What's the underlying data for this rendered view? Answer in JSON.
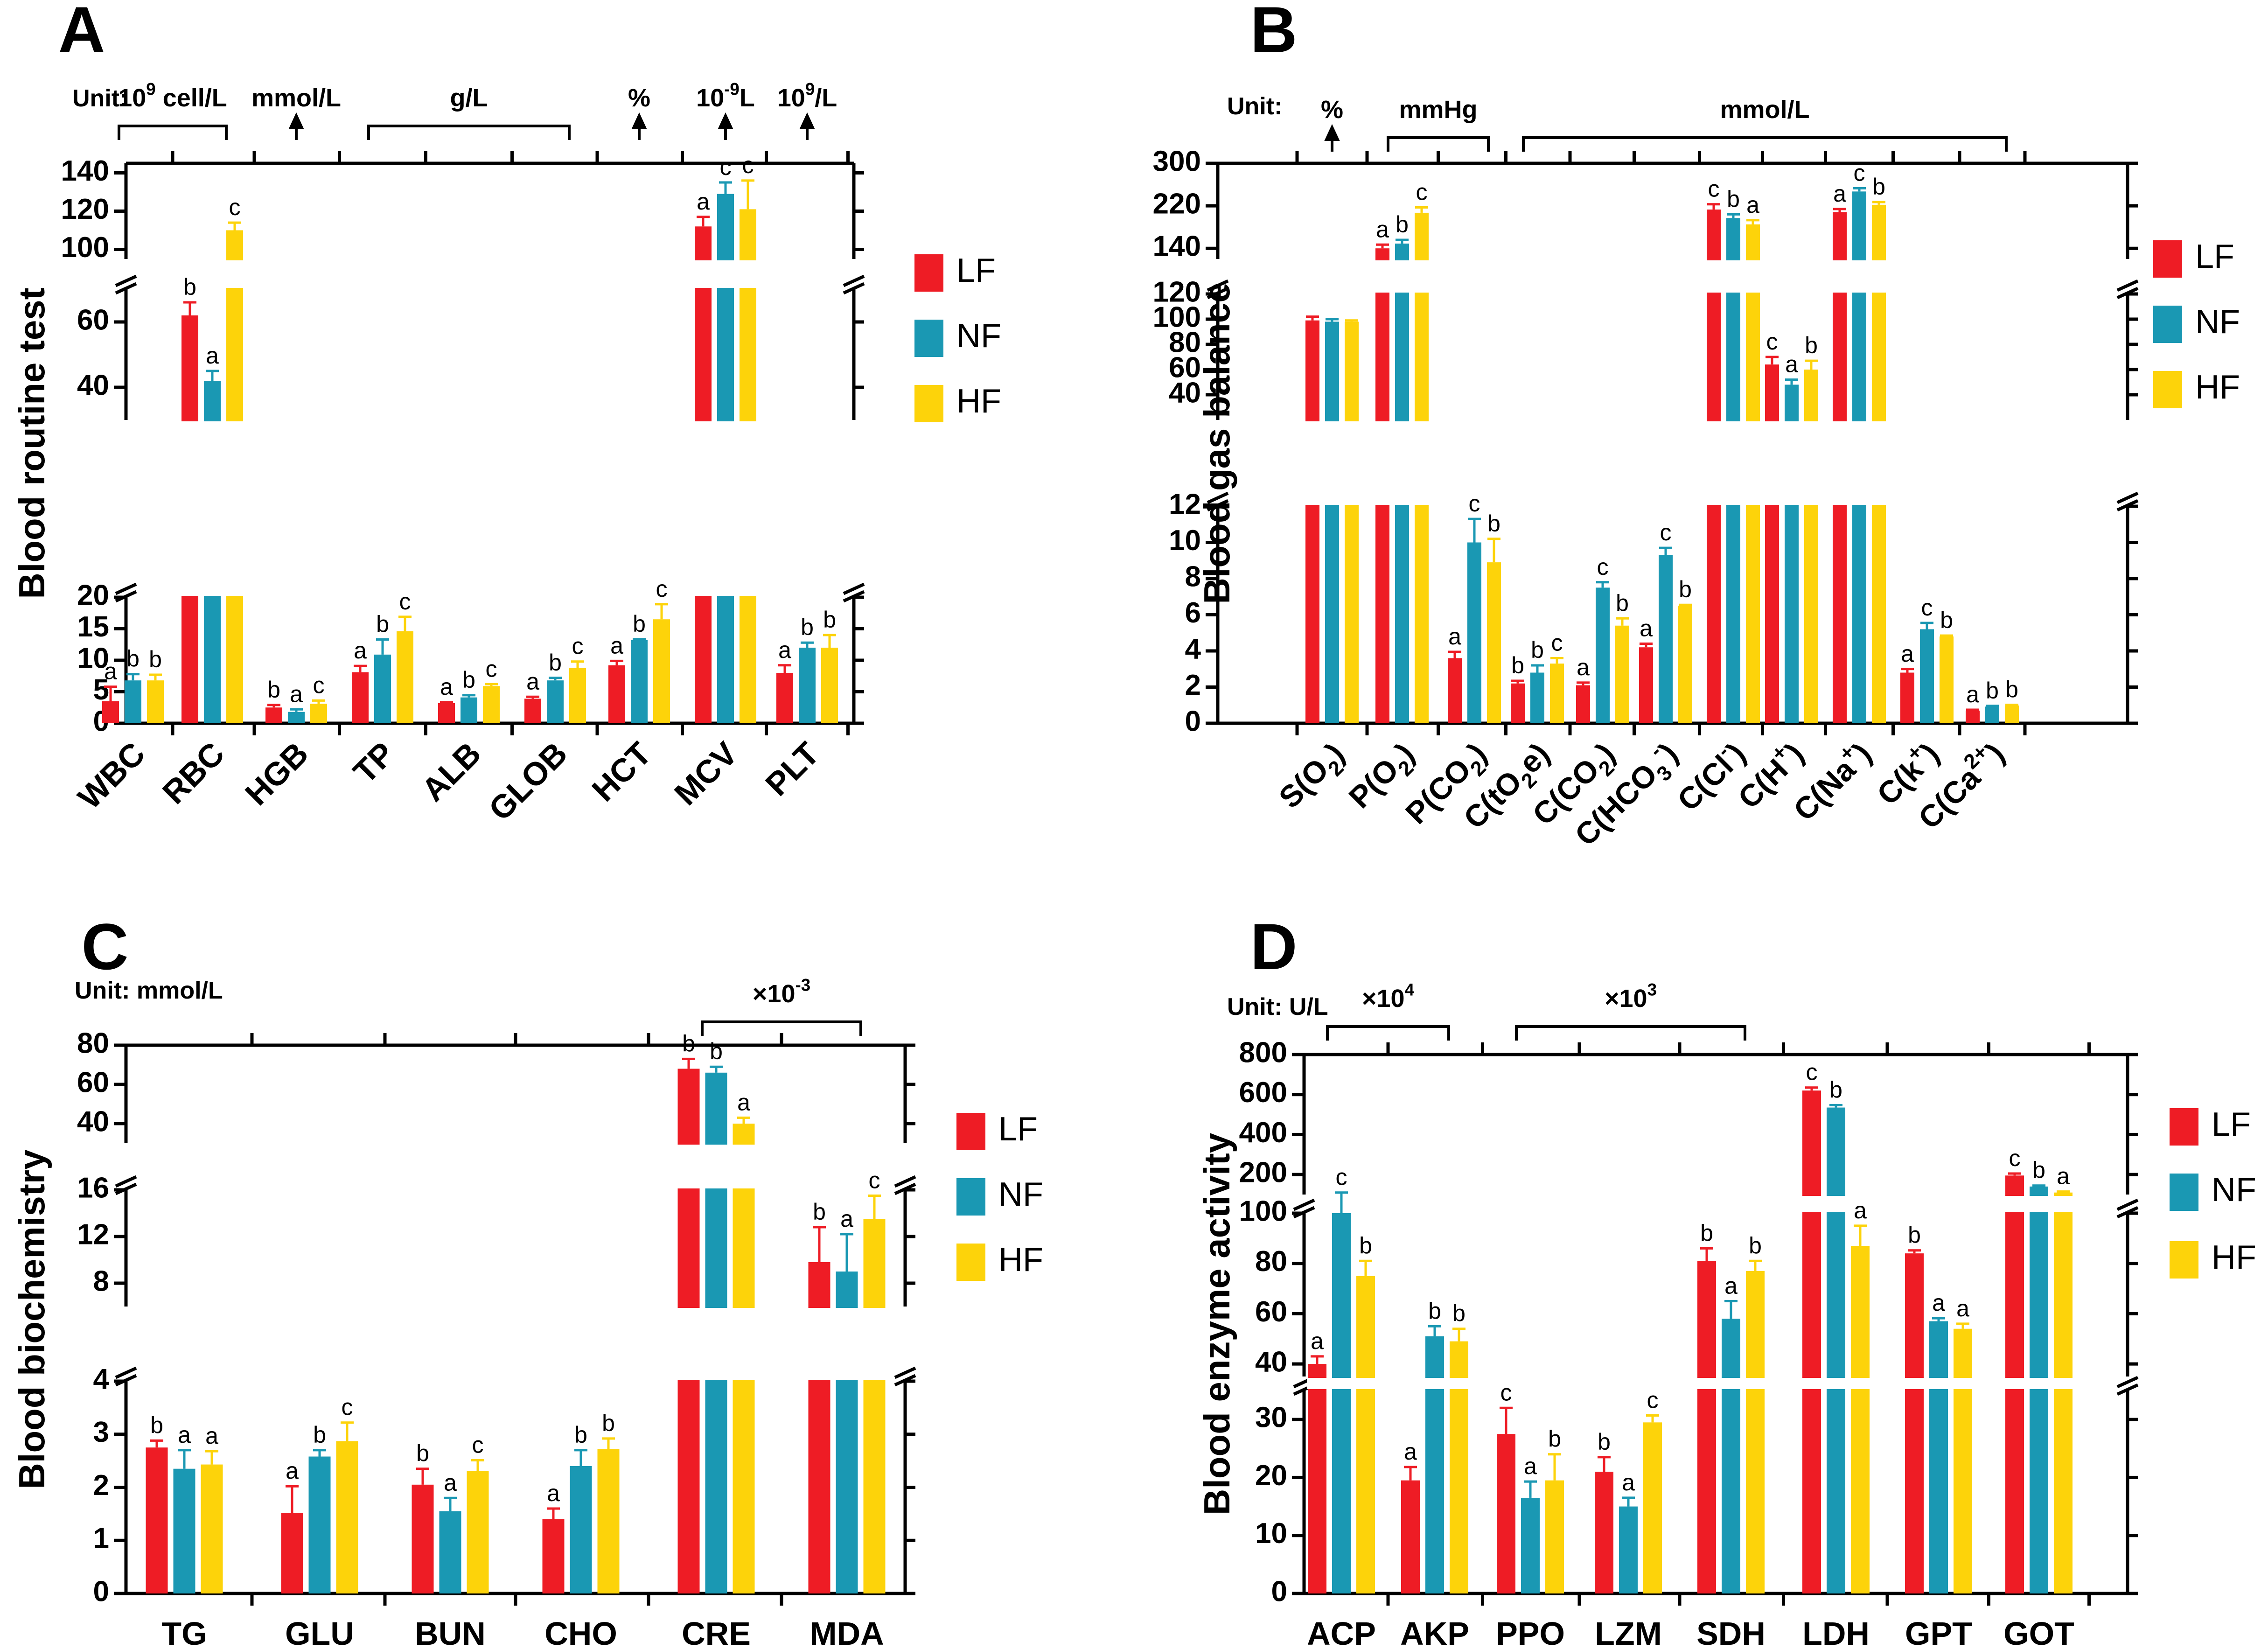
{
  "figure": {
    "legend": [
      "LF",
      "NF",
      "HF"
    ],
    "colors": {
      "LF": "#ee1c25",
      "NF": "#1a98b3",
      "HF": "#fdd30a"
    }
  },
  "chart_data": [
    {
      "panel": "A",
      "type": "bar",
      "ylabel": "Blood routine test",
      "unit_label": "Unit:",
      "categories": [
        "WBC",
        "RBC",
        "HGB",
        "TP",
        "ALB",
        "GLOB",
        "HCT",
        "MCV",
        "PLT"
      ],
      "series": [
        {
          "name": "LF",
          "values": [
            3.5,
            62,
            2.5,
            8.1,
            3.2,
            3.9,
            9.2,
            112,
            8.0
          ],
          "errors": [
            2.3,
            4,
            0.4,
            1.0,
            0.15,
            0.3,
            0.7,
            5,
            1.2
          ],
          "letters": [
            "a",
            "b",
            "b",
            "a",
            "a",
            "a",
            "a",
            "a",
            "a"
          ]
        },
        {
          "name": "NF",
          "values": [
            6.8,
            42,
            1.8,
            10.9,
            4.1,
            6.8,
            13.2,
            129,
            12.0
          ],
          "errors": [
            1.0,
            3,
            0.4,
            2.4,
            0.35,
            0.4,
            0.15,
            6,
            0.8
          ],
          "letters": [
            "b",
            "a",
            "a",
            "b",
            "b",
            "b",
            "b",
            "c",
            "b"
          ]
        },
        {
          "name": "HF",
          "values": [
            6.8,
            110,
            3.1,
            14.6,
            5.9,
            8.8,
            16.5,
            121,
            12.0
          ],
          "errors": [
            0.9,
            4,
            0.5,
            2.3,
            0.3,
            1.0,
            2.4,
            15,
            2.0
          ],
          "letters": [
            "b",
            "c",
            "c",
            "c",
            "c",
            "c",
            "c",
            "c",
            "b"
          ]
        }
      ],
      "y_segments": [
        {
          "range": [
            0,
            20
          ],
          "ticks": [
            0,
            5,
            10,
            15,
            20
          ]
        },
        {
          "range": [
            30,
            70
          ],
          "ticks": [
            40,
            60
          ]
        },
        {
          "range": [
            95,
            145
          ],
          "ticks": [
            100,
            120,
            140
          ]
        }
      ],
      "unit_groups": [
        {
          "label": "10^9 cell/L",
          "from": 0,
          "to": 1
        },
        {
          "label": "mmol/L",
          "from": 2,
          "to": 2
        },
        {
          "label": "g/L",
          "from": 3,
          "to": 5
        },
        {
          "label": "%",
          "from": 6,
          "to": 6
        },
        {
          "label": "10^-9L",
          "from": 7,
          "to": 7
        },
        {
          "label": "10^9/L",
          "from": 8,
          "to": 8
        }
      ]
    },
    {
      "panel": "B",
      "type": "bar",
      "ylabel": "Blood gas balance",
      "unit_label": "Unit:",
      "categories": [
        "S(O2)",
        "P(O2)",
        "P(CO2)",
        "C(tO2e)",
        "C(CO2)",
        "C(HCO3-)",
        "C(Cl-)",
        "C(H+)",
        "C(Na+)",
        "C(k+)",
        "C(Ca2+)"
      ],
      "series": [
        {
          "name": "LF",
          "values": [
            99,
            140,
            3.6,
            2.2,
            2.1,
            4.2,
            213,
            64,
            208,
            2.8,
            0.7
          ],
          "errors": [
            3,
            7,
            0.35,
            0.15,
            0.15,
            0.2,
            10,
            6,
            6,
            0.2,
            0.05
          ],
          "letters": [
            "",
            "a",
            "a",
            "b",
            "a",
            "a",
            "c",
            "c",
            "a",
            "a",
            "a"
          ]
        },
        {
          "name": "NF",
          "values": [
            98,
            149,
            10.0,
            2.8,
            7.5,
            9.3,
            197,
            48,
            247,
            5.2,
            0.92
          ],
          "errors": [
            2,
            7,
            1.3,
            0.4,
            0.3,
            0.4,
            7,
            4,
            6,
            0.35,
            0.04
          ],
          "letters": [
            "",
            "b",
            "c",
            "b",
            "c",
            "c",
            "b",
            "a",
            "c",
            "c",
            "b"
          ]
        },
        {
          "name": "HF",
          "values": [
            98,
            207,
            8.9,
            3.3,
            5.4,
            6.5,
            185,
            60,
            222,
            4.8,
            0.98
          ],
          "errors": [
            1,
            10,
            1.3,
            0.3,
            0.4,
            0.05,
            8,
            7,
            5,
            0.05,
            0.04
          ],
          "letters": [
            "",
            "c",
            "b",
            "c",
            "b",
            "b",
            "a",
            "b",
            "b",
            "b",
            "b"
          ]
        }
      ],
      "y_segments": [
        {
          "range": [
            0,
            12
          ],
          "ticks": [
            0,
            2,
            4,
            6,
            8,
            10,
            12
          ]
        },
        {
          "range": [
            20,
            120
          ],
          "ticks": [
            40,
            60,
            80,
            100,
            120
          ]
        },
        {
          "range": [
            120,
            300
          ],
          "ticks": [
            140,
            220,
            300
          ]
        }
      ],
      "unit_groups": [
        {
          "label": "%",
          "from": 0,
          "to": 0
        },
        {
          "label": "mmHg",
          "from": 1,
          "to": 2
        },
        {
          "label": "mmol/L",
          "from": 3,
          "to": 10
        }
      ]
    },
    {
      "panel": "C",
      "type": "bar",
      "ylabel": "Blood biochemistry",
      "unit_label": "Unit: mmol/L",
      "categories": [
        "TG",
        "GLU",
        "BUN",
        "CHO",
        "CRE",
        "MDA"
      ],
      "series": [
        {
          "name": "LF",
          "values": [
            2.75,
            1.52,
            2.05,
            1.4,
            68,
            9.8
          ],
          "errors": [
            0.13,
            0.5,
            0.3,
            0.2,
            5,
            3.0
          ],
          "letters": [
            "b",
            "a",
            "b",
            "a",
            "b",
            "b"
          ]
        },
        {
          "name": "NF",
          "values": [
            2.35,
            2.58,
            1.55,
            2.4,
            66,
            9.0
          ],
          "errors": [
            0.35,
            0.12,
            0.25,
            0.3,
            3,
            3.2
          ],
          "letters": [
            "a",
            "b",
            "a",
            "b",
            "b",
            "a"
          ]
        },
        {
          "name": "HF",
          "values": [
            2.43,
            2.87,
            2.31,
            2.72,
            40,
            13.5
          ],
          "errors": [
            0.25,
            0.35,
            0.2,
            0.2,
            3,
            2.0
          ],
          "letters": [
            "a",
            "c",
            "c",
            "b",
            "a",
            "c"
          ]
        }
      ],
      "y_segments": [
        {
          "range": [
            0,
            4
          ],
          "ticks": [
            0,
            1,
            2,
            3,
            4
          ]
        },
        {
          "range": [
            6,
            16
          ],
          "ticks": [
            8,
            12,
            16
          ]
        },
        {
          "range": [
            30,
            80
          ],
          "ticks": [
            40,
            60,
            80
          ]
        }
      ],
      "unit_groups": [
        {
          "label": "×10^-3",
          "from": 4,
          "to": 5
        }
      ]
    },
    {
      "panel": "D",
      "type": "bar",
      "ylabel": "Blood enzyme activity",
      "unit_label": "Unit: U/L",
      "categories": [
        "ACP",
        "AKP",
        "PPO",
        "LZM",
        "SDH",
        "LDH",
        "GPT",
        "GOT"
      ],
      "series": [
        {
          "name": "LF",
          "values": [
            40,
            19.5,
            27.5,
            21,
            81,
            620,
            84,
            195
          ],
          "errors": [
            3,
            2.3,
            4.5,
            2.5,
            5,
            15,
            1.2,
            10
          ],
          "letters": [
            "a",
            "a",
            "c",
            "b",
            "b",
            "c",
            "b",
            "c"
          ]
        },
        {
          "name": "NF",
          "values": [
            100,
            51,
            16.5,
            15,
            58,
            535,
            57,
            140
          ],
          "errors": [
            10,
            4,
            2.8,
            1.5,
            7,
            12,
            1.2,
            5
          ],
          "letters": [
            "c",
            "b",
            "a",
            "a",
            "a",
            "b",
            "a",
            "b"
          ]
        },
        {
          "name": "HF",
          "values": [
            75,
            49,
            19.5,
            29.5,
            77,
            87,
            54,
            110
          ],
          "errors": [
            6,
            5,
            4.5,
            1.2,
            4,
            8,
            2,
            5
          ],
          "letters": [
            "b",
            "b",
            "b",
            "c",
            "b",
            "a",
            "a",
            "a"
          ]
        }
      ],
      "y_segments": [
        {
          "range": [
            0,
            35
          ],
          "ticks": [
            0,
            10,
            20,
            30
          ]
        },
        {
          "range": [
            35,
            100
          ],
          "ticks": [
            40,
            60,
            80,
            100
          ]
        },
        {
          "range": [
            100,
            800
          ],
          "ticks": [
            200,
            400,
            600,
            800
          ]
        }
      ],
      "unit_groups": [
        {
          "label": "×10^4",
          "from": 0,
          "to": 1
        },
        {
          "label": "×10^3",
          "from": 2,
          "to": 4
        }
      ]
    }
  ]
}
